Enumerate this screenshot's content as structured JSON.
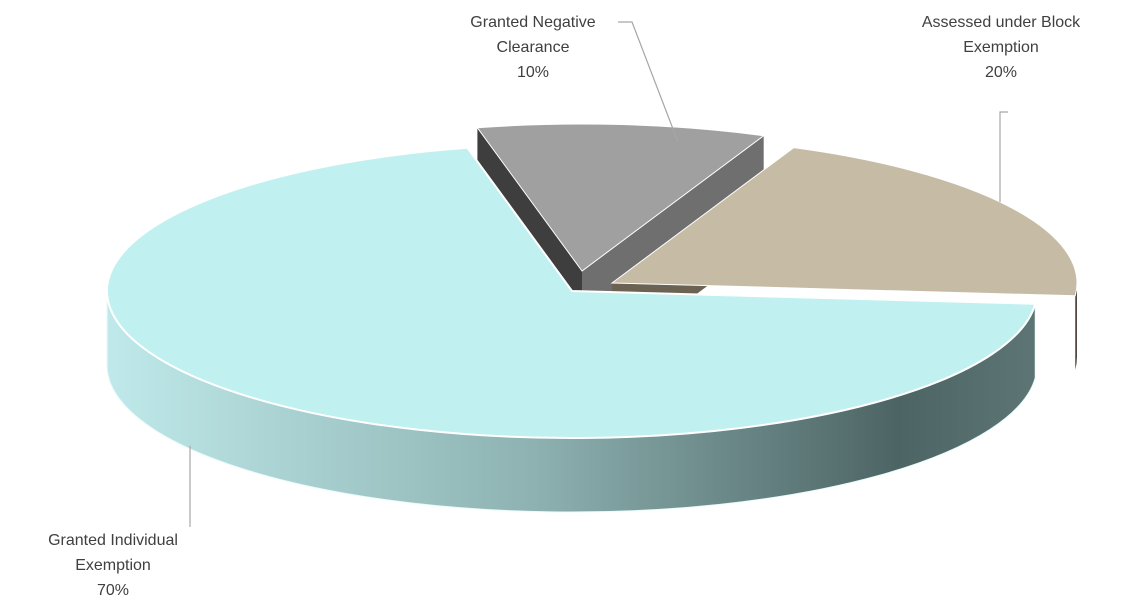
{
  "chart_data": {
    "type": "pie",
    "title": "",
    "style": "3d-exploded",
    "slices": [
      {
        "label_lines": [
          "Granted Individual",
          "Exemption"
        ],
        "percent_label": "70%",
        "value": 70,
        "color": "#c1f0f0",
        "side_dark": "#4d6464",
        "side_light": "#bfe9ea"
      },
      {
        "label_lines": [
          "Granted Negative",
          "Clearance"
        ],
        "percent_label": "10%",
        "value": 10,
        "color": "#a0a0a0",
        "side_dark": "#3e3e3e",
        "side_light": "#6f6f6f"
      },
      {
        "label_lines": [
          "Assessed under Block",
          "Exemption"
        ],
        "percent_label": "20%",
        "value": 20,
        "color": "#c6bca6",
        "side_dark": "#504840",
        "side_light": "#6b6254"
      }
    ]
  }
}
